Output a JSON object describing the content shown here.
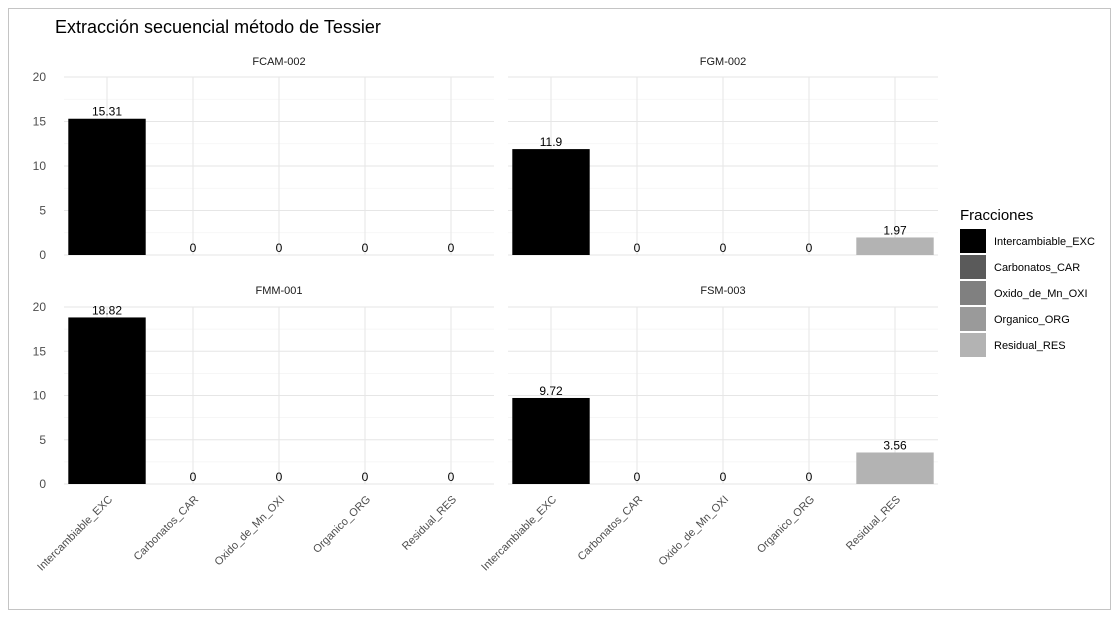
{
  "chart_data": {
    "type": "bar",
    "title": "Extracción secuencial método de Tessier",
    "xlabel": "",
    "ylabel": "",
    "ylim": [
      0,
      20
    ],
    "yticks": [
      "0",
      "5",
      "10",
      "15",
      "20"
    ],
    "categories": [
      "Intercambiable_EXC",
      "Carbonatos_CAR",
      "Oxido_de_Mn_OXI",
      "Organico_ORG",
      "Residual_RES"
    ],
    "colors": {
      "Intercambiable_EXC": "#000000",
      "Carbonatos_CAR": "#5a5a5a",
      "Oxido_de_Mn_OXI": "#808080",
      "Organico_ORG": "#9a9a9a",
      "Residual_RES": "#b3b3b3"
    },
    "facets": [
      {
        "title": "FCAM-002",
        "values": [
          15.31,
          0,
          0,
          0,
          0
        ],
        "labels": [
          "15.31",
          "0",
          "0",
          "0",
          "0"
        ]
      },
      {
        "title": "FGM-002",
        "values": [
          11.9,
          0,
          0,
          0,
          1.97
        ],
        "labels": [
          "11.9",
          "0",
          "0",
          "0",
          "1.97"
        ]
      },
      {
        "title": "FMM-001",
        "values": [
          18.82,
          0,
          0,
          0,
          0
        ],
        "labels": [
          "18.82",
          "0",
          "0",
          "0",
          "0"
        ]
      },
      {
        "title": "FSM-003",
        "values": [
          9.72,
          0,
          0,
          0,
          3.56
        ],
        "labels": [
          "9.72",
          "0",
          "0",
          "0",
          "3.56"
        ]
      }
    ],
    "legend": {
      "title": "Fracciones",
      "position": "right",
      "entries": [
        "Intercambiable_EXC",
        "Carbonatos_CAR",
        "Oxido_de_Mn_OXI",
        "Organico_ORG",
        "Residual_RES"
      ]
    },
    "grid": true
  }
}
